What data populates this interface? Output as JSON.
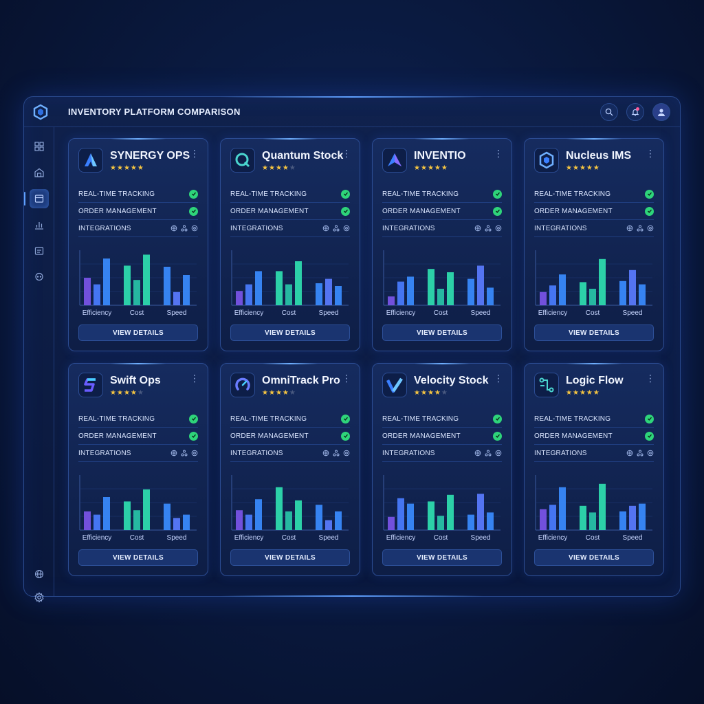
{
  "app": {
    "title": "INVENTORY PLATFORM COMPARISON"
  },
  "topbar": {
    "icons": [
      "search-icon",
      "bell-icon",
      "user-avatar-icon"
    ]
  },
  "sidebar": {
    "items": [
      "dashboard-grid-icon",
      "warehouse-icon",
      "inventory-box-icon",
      "analytics-chart-icon",
      "reports-icon",
      "support-chat-icon",
      "globe-icon",
      "settings-gear-icon"
    ],
    "active_index": 2
  },
  "feature_labels": {
    "tracking": "REAL-TIME TRACKING",
    "orders": "ORDER MANAGEMENT",
    "integrations": "INTEGRATIONS"
  },
  "chart_categories": [
    "Efficiency",
    "Cost",
    "Speed"
  ],
  "view_details_label": "VIEW DETAILS",
  "colors": {
    "accent": "#5fa0ff",
    "check": "#2ed47a",
    "bar_purple": "#7b55e8",
    "bar_blue": "#3a8cff",
    "bar_teal": "#2fe0b0"
  },
  "cards": [
    {
      "name": "SYNERGY OPS",
      "rating": 4.5,
      "logo": "arrow-a-logo-icon",
      "chart_data": {
        "type": "bar",
        "categories": [
          "Efficiency",
          "Cost",
          "Speed"
        ],
        "series": [
          {
            "values": [
              50,
              38,
              85
            ]
          },
          {
            "values": [
              72,
              46,
              92
            ]
          },
          {
            "values": [
              70,
              24,
              55
            ]
          }
        ]
      }
    },
    {
      "name": "Quantum Stock",
      "rating": 4,
      "logo": "q-ring-logo-icon",
      "chart_data": {
        "type": "bar",
        "categories": [
          "Efficiency",
          "Cost",
          "Speed"
        ],
        "series": [
          {
            "values": [
              26,
              38,
              62
            ]
          },
          {
            "values": [
              62,
              38,
              80
            ]
          },
          {
            "values": [
              40,
              48,
              35
            ]
          }
        ]
      }
    },
    {
      "name": "INVENTIO",
      "rating": 5,
      "logo": "delta-logo-icon",
      "chart_data": {
        "type": "bar",
        "categories": [
          "Efficiency",
          "Cost",
          "Speed"
        ],
        "series": [
          {
            "values": [
              16,
              43,
              52
            ]
          },
          {
            "values": [
              66,
              30,
              60
            ]
          },
          {
            "values": [
              48,
              72,
              32
            ]
          }
        ]
      }
    },
    {
      "name": "Nucleus IMS",
      "rating": 5,
      "logo": "hexagon-logo-icon",
      "chart_data": {
        "type": "bar",
        "categories": [
          "Efficiency",
          "Cost",
          "Speed"
        ],
        "series": [
          {
            "values": [
              24,
              36,
              56
            ]
          },
          {
            "values": [
              42,
              30,
              84
            ]
          },
          {
            "values": [
              44,
              64,
              38
            ]
          }
        ]
      }
    },
    {
      "name": "Swift Ops",
      "rating": 4,
      "logo": "s-bolt-logo-icon",
      "chart_data": {
        "type": "bar",
        "categories": [
          "Efficiency",
          "Cost",
          "Speed"
        ],
        "series": [
          {
            "values": [
              34,
              28,
              60
            ]
          },
          {
            "values": [
              52,
              36,
              74
            ]
          },
          {
            "values": [
              48,
              22,
              28
            ]
          }
        ]
      }
    },
    {
      "name": "OmniTrack Pro",
      "rating": 4,
      "logo": "gauge-ring-logo-icon",
      "chart_data": {
        "type": "bar",
        "categories": [
          "Efficiency",
          "Cost",
          "Speed"
        ],
        "series": [
          {
            "values": [
              36,
              28,
              56
            ]
          },
          {
            "values": [
              78,
              34,
              54
            ]
          },
          {
            "values": [
              46,
              18,
              34
            ]
          }
        ]
      }
    },
    {
      "name": "Velocity Stock",
      "rating": 4,
      "logo": "v-check-logo-icon",
      "chart_data": {
        "type": "bar",
        "categories": [
          "Efficiency",
          "Cost",
          "Speed"
        ],
        "series": [
          {
            "values": [
              24,
              58,
              48
            ]
          },
          {
            "values": [
              52,
              26,
              64
            ]
          },
          {
            "values": [
              28,
              66,
              32
            ]
          }
        ]
      }
    },
    {
      "name": "Logic Flow",
      "rating": 5,
      "logo": "circuit-logo-icon",
      "chart_data": {
        "type": "bar",
        "categories": [
          "Efficiency",
          "Cost",
          "Speed"
        ],
        "series": [
          {
            "values": [
              38,
              46,
              78
            ]
          },
          {
            "values": [
              44,
              32,
              84
            ]
          },
          {
            "values": [
              34,
              44,
              48
            ]
          }
        ]
      }
    }
  ]
}
